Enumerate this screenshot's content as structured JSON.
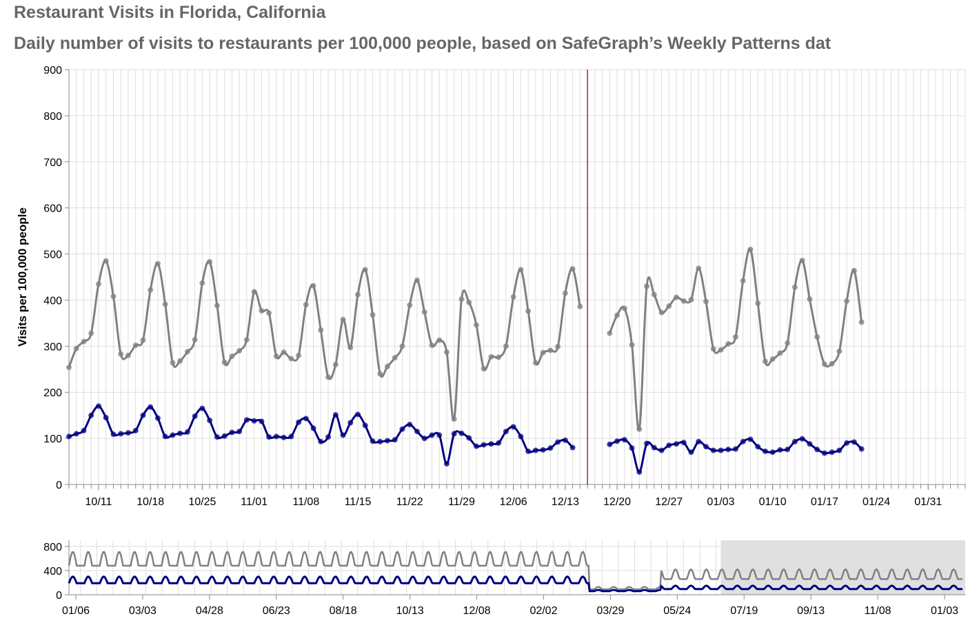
{
  "title": "Restaurant Visits in Florida, California",
  "subtitle": "Daily number of visits to restaurants per 100,000 people, based on SafeGraph’s Weekly Patterns dat",
  "colors": {
    "grey_series": "#808080",
    "blue_series": "#000080",
    "rule": "#b22222",
    "grid": "#dddddd",
    "brush": "#e0e0e0"
  },
  "chart_data": [
    {
      "type": "line",
      "ylabel": "Visits per 100,000 people",
      "ylim": [
        0,
        900
      ],
      "yticks": [
        0,
        100,
        200,
        300,
        400,
        500,
        600,
        700,
        800,
        900
      ],
      "xlim": [
        "10/07",
        "02/05"
      ],
      "xtick_labels": [
        "10/11",
        "10/18",
        "10/25",
        "11/01",
        "11/08",
        "11/15",
        "11/22",
        "11/29",
        "12/06",
        "12/13",
        "12/20",
        "12/27",
        "01/03",
        "01/10",
        "01/17",
        "01/24",
        "01/31"
      ],
      "vertical_rule_date": "12/16",
      "grid": true,
      "series": [
        {
          "segments": [
            {
              "start": "10/07",
              "values": [
                254,
                295,
                310,
                328,
                435,
                485,
                408,
                283,
                280,
                302,
                313,
                422,
                479,
                391,
                264,
                268,
                288,
                314,
                437,
                483,
                388,
                265,
                278,
                290,
                314,
                418,
                377,
                372,
                278,
                287,
                273,
                280,
                390,
                431,
                335,
                233,
                260,
                358,
                297,
                412,
                466,
                368,
                240,
                256,
                275,
                300,
                389,
                443,
                374,
                302,
                313,
                287,
                142,
                402,
                395,
                346,
                251,
                277,
                276,
                300,
                407,
                466,
                376,
                264,
                286,
                291,
                299,
                415,
                468,
                386
              ]
            },
            {
              "start": "12/19",
              "values": [
                328,
                367,
                382,
                303,
                120,
                430,
                412,
                373,
                387,
                406,
                398,
                401,
                469,
                397,
                294,
                292,
                305,
                320,
                442,
                510,
                393,
                267,
                272,
                285,
                307,
                428,
                486,
                402,
                320,
                261,
                262,
                289,
                398,
                464,
                352
              ]
            }
          ]
        },
        {
          "segments": [
            {
              "start": "10/07",
              "values": [
                104,
                110,
                117,
                150,
                170,
                145,
                109,
                110,
                112,
                117,
                150,
                168,
                144,
                104,
                107,
                111,
                114,
                148,
                165,
                139,
                103,
                105,
                113,
                115,
                140,
                138,
                137,
                103,
                104,
                102,
                104,
                135,
                143,
                122,
                93,
                103,
                151,
                107,
                134,
                152,
                128,
                94,
                93,
                95,
                97,
                120,
                130,
                115,
                100,
                107,
                107,
                45,
                110,
                111,
                101,
                83,
                86,
                88,
                90,
                115,
                125,
                104,
                72,
                74,
                75,
                79,
                92,
                96,
                80
              ]
            },
            {
              "start": "12/19",
              "values": [
                87,
                94,
                97,
                79,
                27,
                89,
                80,
                74,
                85,
                88,
                91,
                70,
                93,
                82,
                74,
                74,
                76,
                77,
                93,
                98,
                82,
                72,
                70,
                75,
                76,
                93,
                99,
                88,
                76,
                68,
                70,
                74,
                90,
                92,
                77
              ]
            }
          ]
        }
      ]
    },
    {
      "type": "line",
      "role": "overview",
      "ylim": [
        0,
        900
      ],
      "yticks": [
        0,
        400,
        800
      ],
      "xlim": [
        "01/01",
        "01/20"
      ],
      "xtick_labels": [
        "01/06",
        "03/03",
        "04/28",
        "06/23",
        "08/18",
        "10/13",
        "12/08",
        "02/02",
        "03/29",
        "05/24",
        "07/19",
        "09/13",
        "11/08",
        "01/03"
      ],
      "brush_range": [
        "10/07",
        "02/05"
      ],
      "series_note_grey": "approx 400-700 weekly oscillation, drops to ~100 at 03/29 then recovers to ~300-450",
      "series_note_blue": "approx 200-300 weekly oscillation, drops to ~70 at 03/29 then ~100-150"
    }
  ]
}
